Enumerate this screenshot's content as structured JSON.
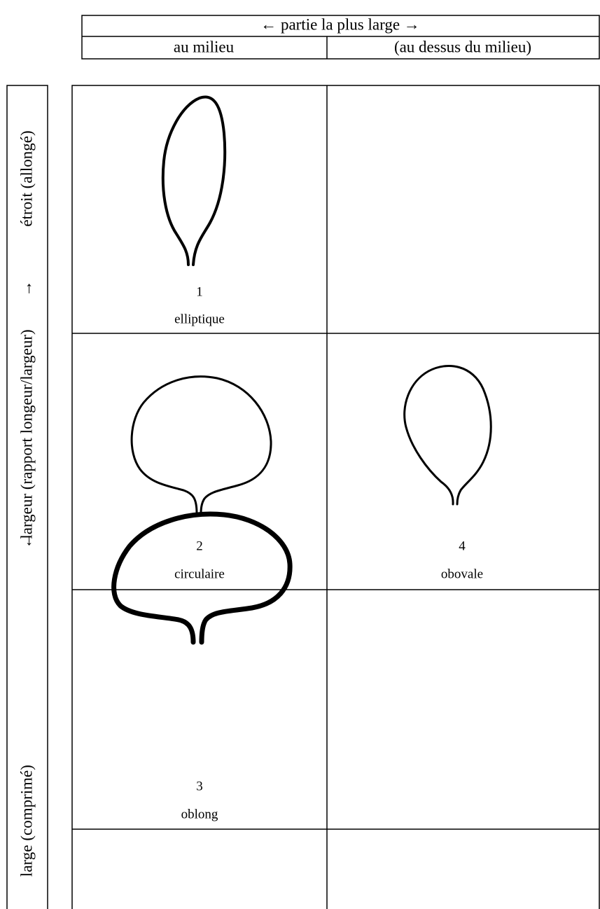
{
  "header": {
    "title": "← partie la plus large →",
    "columns": [
      "au milieu",
      "(au dessus du milieu)"
    ]
  },
  "side": {
    "parts": [
      "étroit (allongé)",
      "→",
      "largeur (rapport longeur/largeur)",
      "←",
      "large (comprimé)"
    ]
  },
  "cells": [
    {
      "number": 1,
      "name": "elliptique"
    },
    {
      "number": 2,
      "name": "circulaire"
    },
    {
      "number": 4,
      "name": "obovale"
    },
    {
      "number": 3,
      "name": "oblong"
    }
  ]
}
